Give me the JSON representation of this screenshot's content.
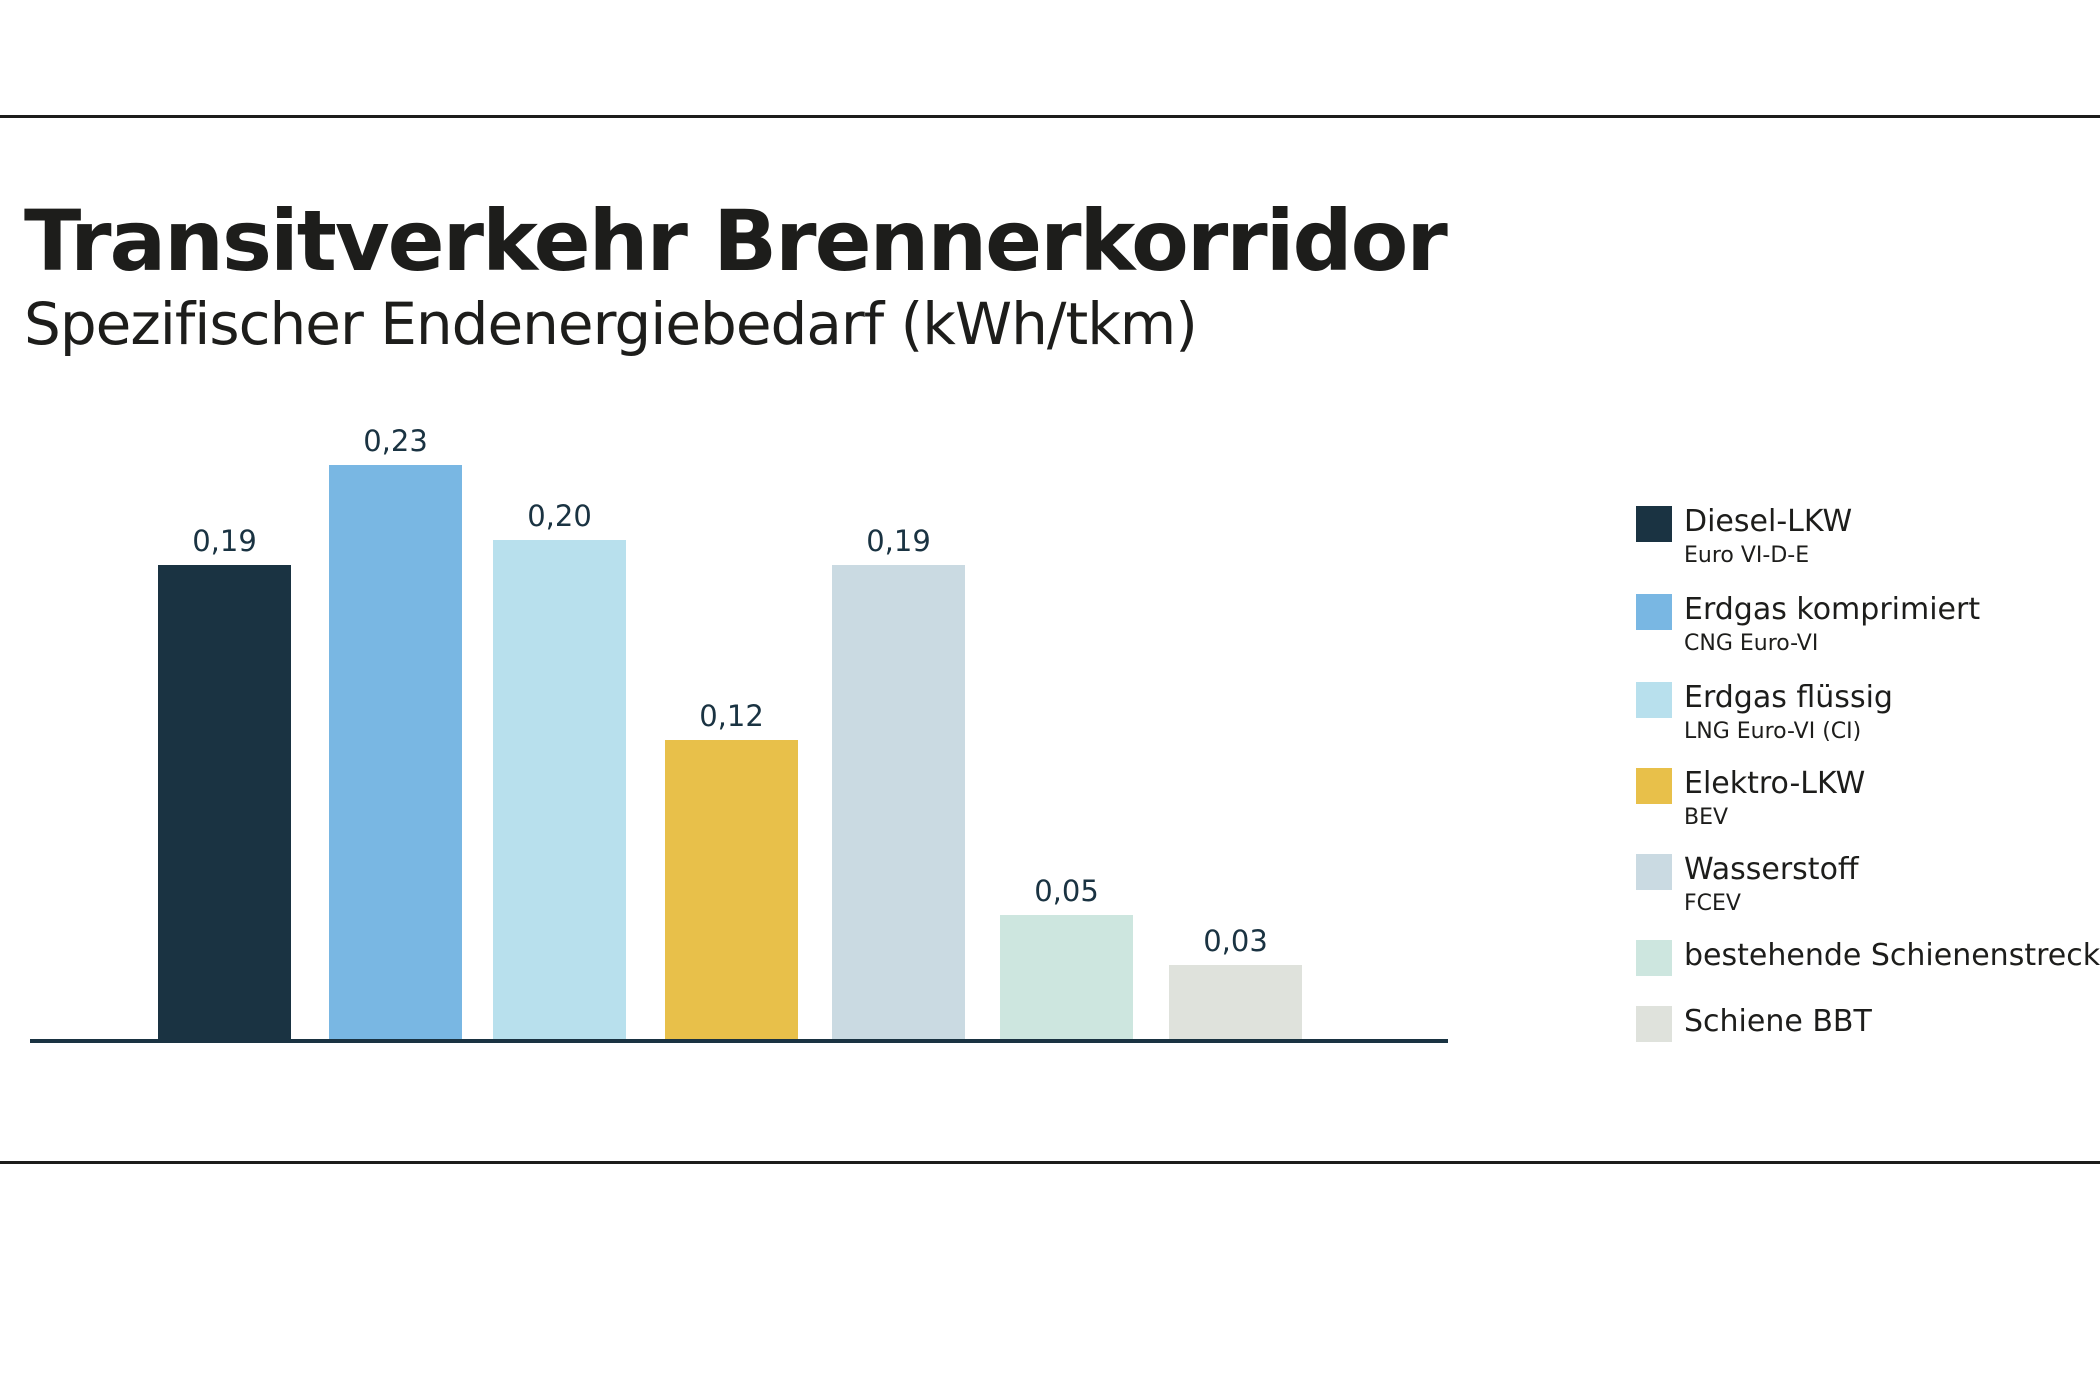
{
  "title": "Transitverkehr Brennerkorridor",
  "subtitle": "Spezifischer Endenergiebedarf (kWh/tkm)",
  "chart_data": {
    "type": "bar",
    "title": "Transitverkehr Brennerkorridor",
    "subtitle": "Spezifischer Endenergiebedarf (kWh/tkm)",
    "xlabel": "",
    "ylabel": "kWh/tkm",
    "ylim": [
      0,
      0.23
    ],
    "grid": false,
    "legend_position": "right",
    "categories": [
      "Diesel-LKW",
      "Erdgas komprimiert",
      "Erdgas flüssig",
      "Elektro-LKW",
      "Wasserstoff",
      "bestehende Schienenstrecke",
      "Schiene BBT"
    ],
    "subcategories": [
      "Euro VI-D-E",
      "CNG Euro-VI",
      "LNG Euro-VI (CI)",
      "BEV",
      "FCEV",
      "",
      ""
    ],
    "values": [
      0.19,
      0.23,
      0.2,
      0.12,
      0.19,
      0.05,
      0.03
    ],
    "value_labels": [
      "0,19",
      "0,23",
      "0,20",
      "0,12",
      "0,19",
      "0,05",
      "0,03"
    ],
    "colors": [
      "#1a3342",
      "#79b7e3",
      "#b8e0ed",
      "#e8c04a",
      "#cadae2",
      "#cde6df",
      "#dfe2dc"
    ],
    "axis_color": "#1a3342"
  }
}
